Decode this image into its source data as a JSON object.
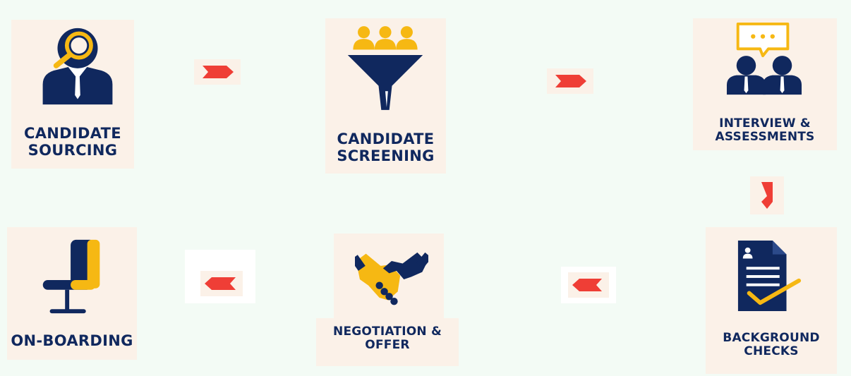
{
  "steps": [
    {
      "id": "sourcing",
      "line1": "CANDIDATE",
      "line2": "SOURCING",
      "icon": "person-magnifier-icon"
    },
    {
      "id": "screening",
      "line1": "CANDIDATE",
      "line2": "SCREENING",
      "icon": "funnel-people-icon"
    },
    {
      "id": "interview",
      "line1": "INTERVIEW &",
      "line2": "ASSESSMENTS",
      "icon": "two-people-speech-bubble-icon"
    },
    {
      "id": "background",
      "line1": "BACKGROUND",
      "line2": "CHECKS",
      "icon": "document-checkmark-icon"
    },
    {
      "id": "negotiation",
      "line1": "NEGOTIATION &",
      "line2": "OFFER",
      "icon": "handshake-icon"
    },
    {
      "id": "onboarding",
      "line1": "ON-BOARDING",
      "line2": "",
      "icon": "chair-icon"
    }
  ],
  "colors": {
    "background": "#f3fbf5",
    "card": "#fbf1e8",
    "navy": "#10285e",
    "gold": "#f6b813",
    "arrow": "#ef3e36"
  }
}
